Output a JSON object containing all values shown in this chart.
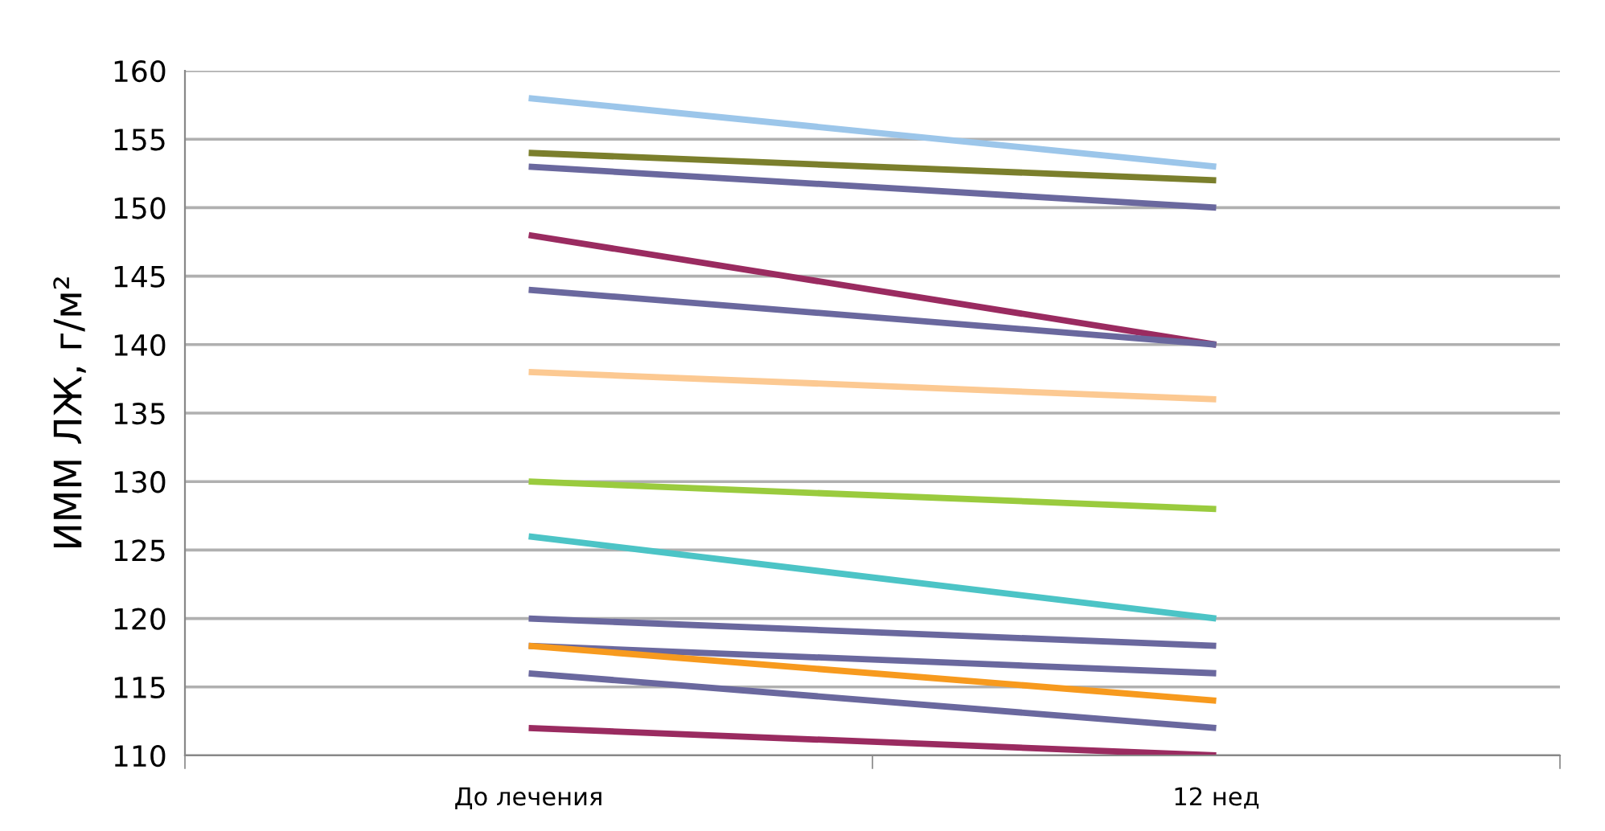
{
  "chart_data": {
    "type": "line",
    "ylabel": "ИММ ЛЖ, г/м²",
    "categories": [
      "До лечения",
      "12 нед"
    ],
    "series": [
      {
        "color": "#9cc6ea",
        "values": [
          158,
          153
        ]
      },
      {
        "color": "#7b7f2c",
        "values": [
          154,
          152
        ]
      },
      {
        "color": "#6a689e",
        "values": [
          153,
          150
        ]
      },
      {
        "color": "#9a2b60",
        "values": [
          148,
          140
        ]
      },
      {
        "color": "#6a689e",
        "values": [
          144,
          140
        ]
      },
      {
        "color": "#fcc992",
        "values": [
          138,
          136
        ]
      },
      {
        "color": "#9acb3e",
        "values": [
          130,
          128
        ]
      },
      {
        "color": "#4cc4c6",
        "values": [
          126,
          120
        ]
      },
      {
        "color": "#6a689e",
        "values": [
          120,
          118
        ]
      },
      {
        "color": "#6a689e",
        "values": [
          118,
          116
        ]
      },
      {
        "color": "#f79a1e",
        "values": [
          118,
          114
        ]
      },
      {
        "color": "#6a689e",
        "values": [
          116,
          112
        ]
      },
      {
        "color": "#9a2b60",
        "values": [
          112,
          110
        ]
      }
    ],
    "ylim": [
      110,
      160
    ],
    "yticks": [
      110,
      115,
      120,
      125,
      130,
      135,
      140,
      145,
      150,
      155,
      160
    ],
    "grid": "y",
    "legend": false,
    "marker": "none",
    "line_style": "solid"
  }
}
